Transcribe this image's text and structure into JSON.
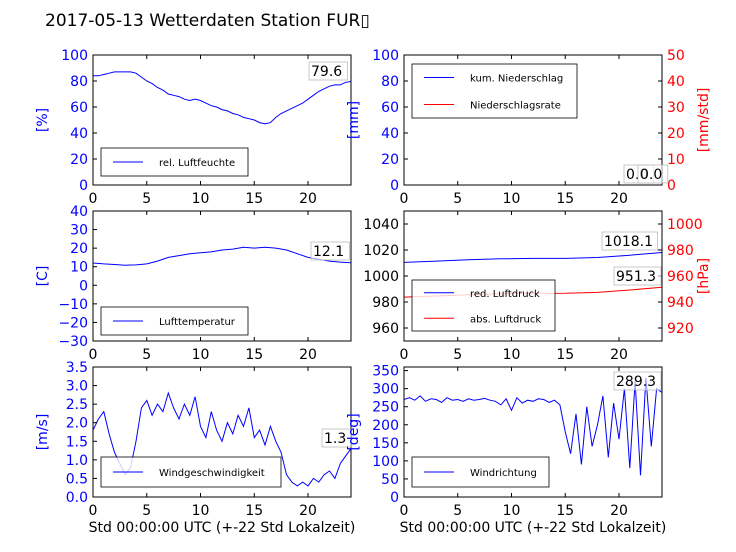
{
  "title": "2017-05-13 Wetterdaten Station FUR▯",
  "chart_data": [
    {
      "type": "line",
      "ylabel": "[%]",
      "xlabel": "",
      "xlim": [
        0,
        24
      ],
      "ylim": [
        0,
        100
      ],
      "xticks": [
        "0",
        "5",
        "10",
        "15",
        "20"
      ],
      "yticks": [
        "0",
        "20",
        "40",
        "60",
        "80",
        "100"
      ],
      "legend_position": "lower-left",
      "last_value_label": "79.6",
      "series": [
        {
          "name": "rel. Luftfeuchte",
          "color": "#0000ff",
          "axis": "left",
          "x": [
            0,
            0.5,
            1,
            1.5,
            2,
            2.5,
            3,
            3.5,
            4,
            4.5,
            5,
            5.5,
            6,
            6.5,
            7,
            7.5,
            8,
            8.5,
            9,
            9.5,
            10,
            10.5,
            11,
            11.5,
            12,
            12.5,
            13,
            13.5,
            14,
            14.5,
            15,
            15.5,
            16,
            16.5,
            17,
            17.5,
            18,
            18.5,
            19,
            19.5,
            20,
            20.5,
            21,
            21.5,
            22,
            22.5,
            23,
            23.5,
            24
          ],
          "y": [
            84,
            84,
            85,
            86,
            87,
            87,
            87,
            87,
            86,
            83,
            80,
            78,
            75,
            73,
            70,
            69,
            68,
            66,
            65,
            66,
            65,
            63,
            61,
            60,
            58,
            57,
            55,
            54,
            52,
            51,
            50,
            48,
            47,
            48,
            52,
            55,
            57,
            59,
            61,
            63,
            66,
            69,
            72,
            74,
            76,
            77,
            77,
            79,
            79.6
          ]
        }
      ]
    },
    {
      "type": "line",
      "ylabel": "[mm]",
      "ylabel_right": "[mm/std]",
      "xlabel": "",
      "xlim": [
        0,
        24
      ],
      "ylim": [
        0,
        100
      ],
      "ylim_right": [
        0,
        50
      ],
      "xticks": [
        "0",
        "5",
        "10",
        "15",
        "20"
      ],
      "yticks": [
        "0",
        "20",
        "40",
        "60",
        "80",
        "100"
      ],
      "yticks_right": [
        "0",
        "10",
        "20",
        "30",
        "40",
        "50"
      ],
      "legend_position": "upper-left",
      "last_value_label": "0.0",
      "last_value_label_2": "0.0",
      "series": [
        {
          "name": "kum. Niederschlag",
          "color": "#0000ff",
          "axis": "left",
          "x": [
            0,
            24
          ],
          "y": [
            0,
            0
          ]
        },
        {
          "name": "Niederschlagsrate",
          "color": "#ff0000",
          "axis": "right",
          "x": [
            0,
            24
          ],
          "y": [
            0,
            0
          ]
        }
      ]
    },
    {
      "type": "line",
      "ylabel": "[C]",
      "xlabel": "",
      "xlim": [
        0,
        24
      ],
      "ylim": [
        -30,
        40
      ],
      "xticks": [
        "0",
        "5",
        "10",
        "15",
        "20"
      ],
      "yticks": [
        "−30",
        "−20",
        "−10",
        "0",
        "10",
        "20",
        "30",
        "40"
      ],
      "legend_position": "lower-left",
      "last_value_label": "12.1",
      "series": [
        {
          "name": "Lufttemperatur",
          "color": "#0000ff",
          "axis": "left",
          "x": [
            0,
            1,
            2,
            3,
            4,
            5,
            6,
            7,
            8,
            9,
            10,
            11,
            12,
            13,
            14,
            15,
            16,
            17,
            18,
            19,
            20,
            21,
            22,
            23,
            24
          ],
          "y": [
            12,
            11.5,
            11.2,
            10.8,
            11,
            11.5,
            13,
            15,
            16,
            17,
            17.5,
            18,
            19,
            19.5,
            20.5,
            20,
            20.5,
            20,
            19,
            17,
            15,
            14,
            13,
            12.5,
            12.1
          ]
        }
      ]
    },
    {
      "type": "line",
      "ylabel": "",
      "ylabel_right": "[hPa]",
      "xlabel": "",
      "xlim": [
        0,
        24
      ],
      "ylim": [
        950,
        1050
      ],
      "ylim_right": [
        910,
        1010
      ],
      "xticks": [
        "0",
        "5",
        "10",
        "15",
        "20"
      ],
      "yticks": [
        "960",
        "980",
        "1000",
        "1020",
        "1040"
      ],
      "yticks_right": [
        "920",
        "940",
        "960",
        "980",
        "1000"
      ],
      "legend_position": "lower-left",
      "last_value_label": "1018.1",
      "last_value_label_2": "951.3",
      "series": [
        {
          "name": "red. Luftdruck",
          "color": "#0000ff",
          "axis": "left",
          "x": [
            0,
            3,
            6,
            9,
            12,
            15,
            18,
            21,
            24
          ],
          "y": [
            1010.5,
            1011.5,
            1012.5,
            1013.2,
            1013.5,
            1013.5,
            1014.2,
            1016,
            1018.1
          ]
        },
        {
          "name": "abs. Luftdruck",
          "color": "#ff0000",
          "axis": "right",
          "x": [
            0,
            3,
            6,
            9,
            12,
            15,
            18,
            21,
            24
          ],
          "y": [
            943.8,
            944.6,
            945.6,
            946.3,
            946.6,
            946.7,
            947.4,
            949.2,
            951.3
          ]
        }
      ]
    },
    {
      "type": "line",
      "ylabel": "[m/s]",
      "xlabel": "Std 00:00:00 UTC (+-22 Std Lokalzeit)",
      "xlim": [
        0,
        24
      ],
      "ylim": [
        0,
        3.5
      ],
      "xticks": [
        "0",
        "5",
        "10",
        "15",
        "20"
      ],
      "yticks": [
        "0.0",
        "0.5",
        "1.0",
        "1.5",
        "2.0",
        "2.5",
        "3.0",
        "3.5"
      ],
      "legend_position": "lower-left",
      "last_value_label": "1.3",
      "series": [
        {
          "name": "Windgeschwindigkeit",
          "color": "#0000ff",
          "axis": "left",
          "x": [
            0,
            0.5,
            1,
            1.5,
            2,
            2.5,
            3,
            3.5,
            4,
            4.5,
            5,
            5.5,
            6,
            6.5,
            7,
            7.5,
            8,
            8.5,
            9,
            9.5,
            10,
            10.5,
            11,
            11.5,
            12,
            12.5,
            13,
            13.5,
            14,
            14.5,
            15,
            15.5,
            16,
            16.5,
            17,
            17.5,
            18,
            18.5,
            19,
            19.5,
            20,
            20.5,
            21,
            21.5,
            22,
            22.5,
            23,
            23.5,
            24
          ],
          "y": [
            1.8,
            2.1,
            2.3,
            1.7,
            1.2,
            0.9,
            0.6,
            0.8,
            1.5,
            2.4,
            2.6,
            2.2,
            2.5,
            2.3,
            2.8,
            2.4,
            2.1,
            2.5,
            2.2,
            2.7,
            1.9,
            1.6,
            2.3,
            1.8,
            1.5,
            2.0,
            1.7,
            2.2,
            1.9,
            2.4,
            1.6,
            1.8,
            1.4,
            1.9,
            1.5,
            1.2,
            0.6,
            0.4,
            0.3,
            0.4,
            0.3,
            0.5,
            0.4,
            0.6,
            0.7,
            0.5,
            0.9,
            1.1,
            1.3
          ]
        }
      ]
    },
    {
      "type": "line",
      "ylabel": "[deg]",
      "xlabel": "Std 00:00:00 UTC (+-22 Std Lokalzeit)",
      "xlim": [
        0,
        24
      ],
      "ylim": [
        0,
        360
      ],
      "xticks": [
        "0",
        "5",
        "10",
        "15",
        "20"
      ],
      "yticks": [
        "0",
        "50",
        "100",
        "150",
        "200",
        "250",
        "300",
        "350"
      ],
      "legend_position": "lower-left",
      "last_value_label": "289.3",
      "series": [
        {
          "name": "Windrichtung",
          "color": "#0000ff",
          "axis": "left",
          "x": [
            0,
            0.5,
            1,
            1.5,
            2,
            2.5,
            3,
            3.5,
            4,
            4.5,
            5,
            5.5,
            6,
            6.5,
            7,
            7.5,
            8,
            8.5,
            9,
            9.5,
            10,
            10.5,
            11,
            11.5,
            12,
            12.5,
            13,
            13.5,
            14,
            14.5,
            15,
            15.5,
            16,
            16.5,
            17,
            17.5,
            18,
            18.5,
            19,
            19.5,
            20,
            20.5,
            21,
            21.5,
            22,
            22.5,
            23,
            23.5,
            24
          ],
          "y": [
            270,
            275,
            268,
            280,
            265,
            272,
            270,
            262,
            275,
            268,
            270,
            265,
            272,
            268,
            270,
            273,
            268,
            265,
            255,
            272,
            240,
            275,
            260,
            268,
            265,
            272,
            270,
            262,
            268,
            255,
            180,
            120,
            230,
            90,
            250,
            140,
            200,
            280,
            110,
            260,
            160,
            300,
            80,
            320,
            60,
            330,
            140,
            300,
            289.3
          ]
        }
      ]
    }
  ]
}
